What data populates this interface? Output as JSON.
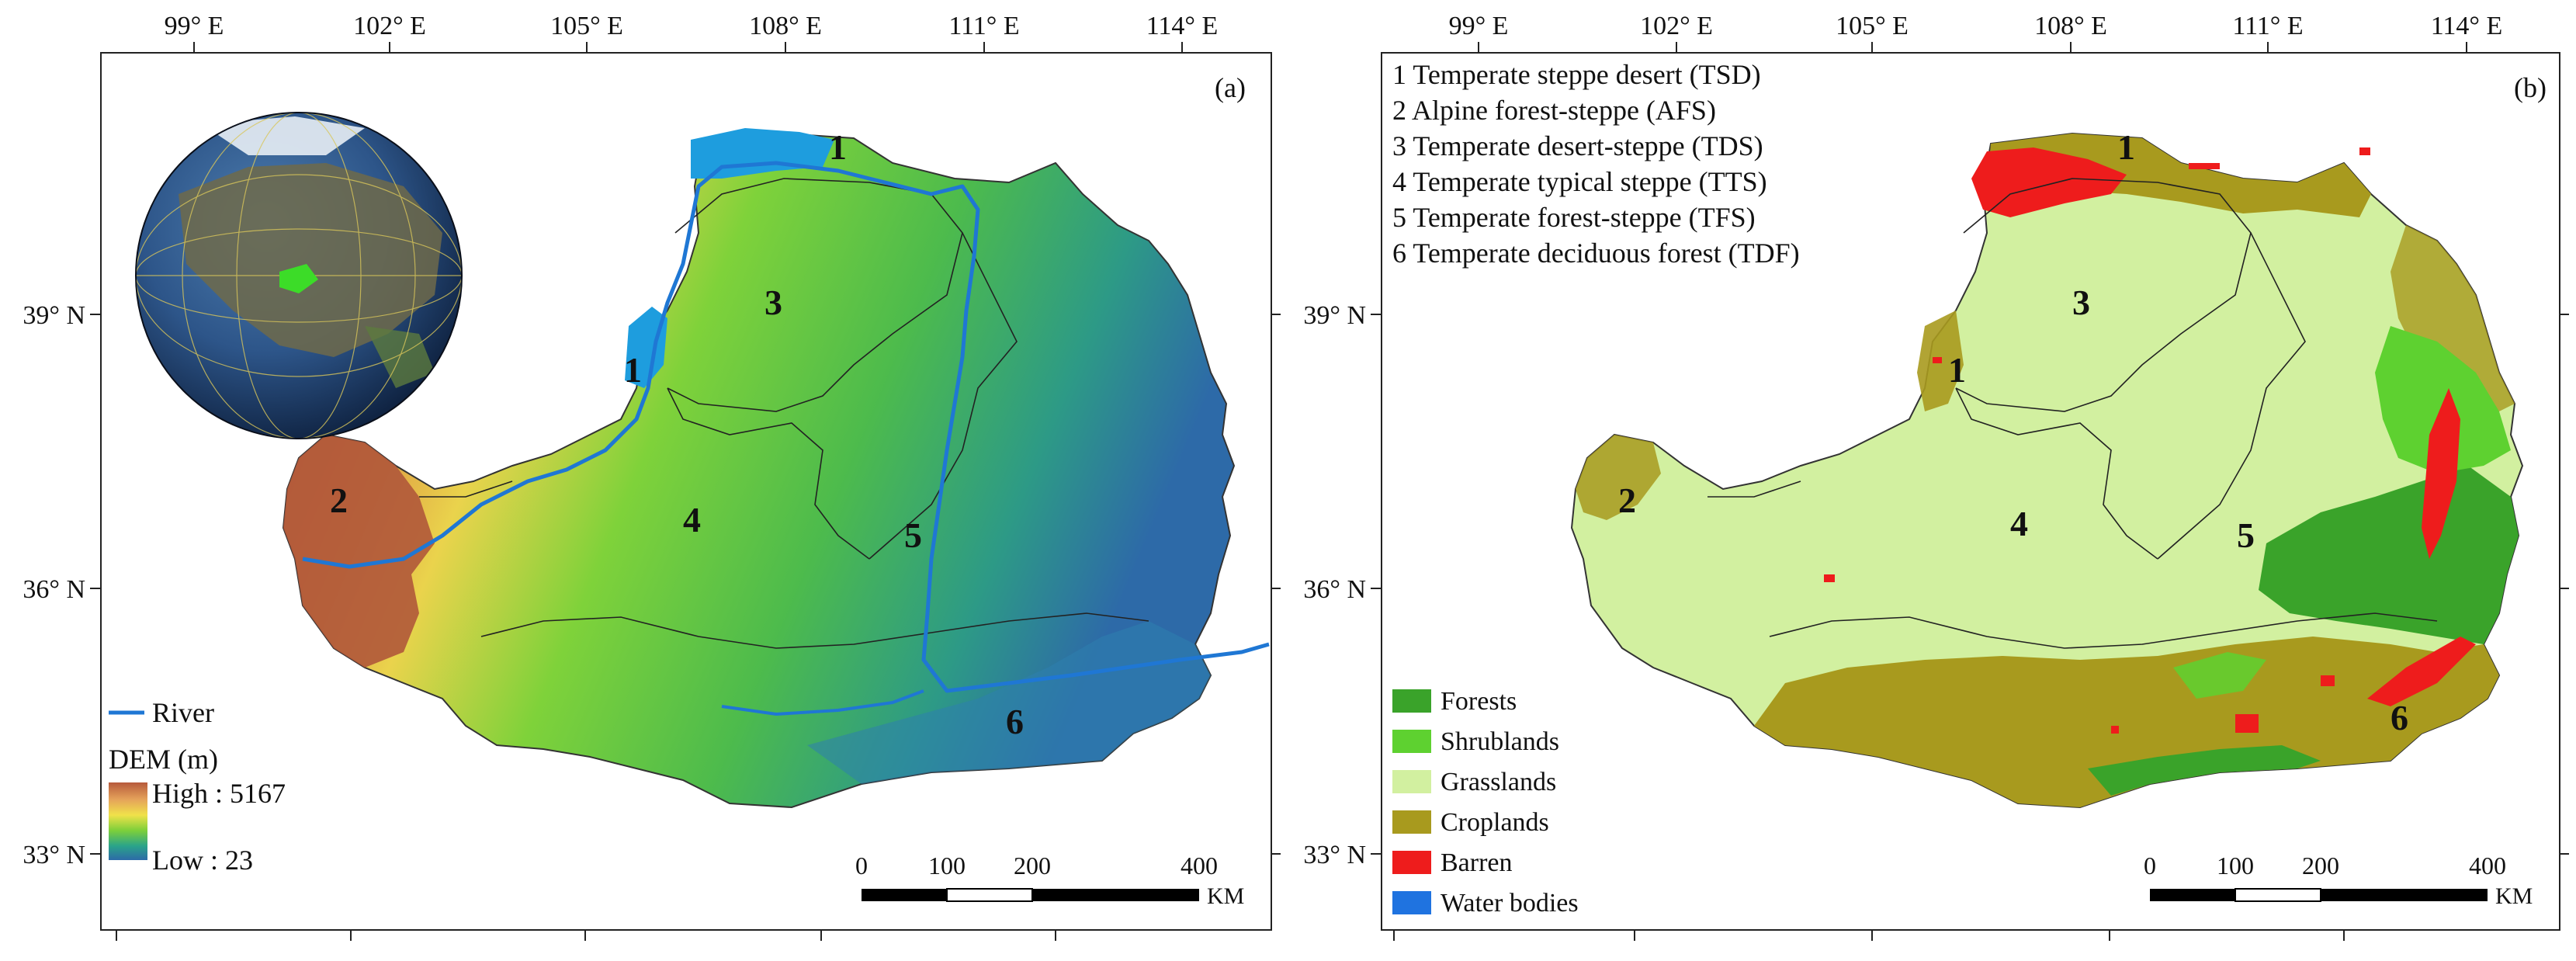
{
  "panel_a": {
    "label": "(a)",
    "top_ticks": [
      "99° E",
      "102° E",
      "105° E",
      "108° E",
      "111° E",
      "114° E"
    ],
    "left_ticks": [
      "39° N",
      "36° N",
      "33° N"
    ],
    "region_numbers": [
      "1",
      "1",
      "2",
      "3",
      "4",
      "5",
      "6"
    ],
    "legend": {
      "river_label": "River",
      "dem_title": "DEM (m)",
      "dem_high": "High : 5167",
      "dem_low": "Low : 23",
      "ramp_colors": [
        "#b75a3c",
        "#e5a35a",
        "#f0e24a",
        "#7ccf3a",
        "#2aa38a",
        "#2d6aa8"
      ]
    },
    "scale": {
      "labels": [
        "0",
        "100",
        "200",
        "400"
      ],
      "unit": "KM"
    },
    "colors": {
      "river": "#1f77d4",
      "basin": "#1e9dde",
      "lowland": "#2e7fae",
      "highland": "#b0583a"
    }
  },
  "panel_b": {
    "label": "(b)",
    "top_ticks": [
      "99° E",
      "102° E",
      "105° E",
      "108° E",
      "111° E",
      "114° E"
    ],
    "left_ticks": [
      "39° N",
      "36° N",
      "33° N"
    ],
    "zone_list": [
      "1 Temperate steppe desert (TSD)",
      "2 Alpine forest-steppe (AFS)",
      "3 Temperate desert-steppe (TDS)",
      "4 Temperate typical steppe (TTS)",
      "5 Temperate forest-steppe (TFS)",
      "6 Temperate deciduous forest (TDF)"
    ],
    "region_numbers": [
      "1",
      "1",
      "2",
      "3",
      "4",
      "5",
      "6"
    ],
    "landcover_legend": [
      {
        "label": "Forests",
        "color": "#3aa32a"
      },
      {
        "label": "Shrublands",
        "color": "#5ed130"
      },
      {
        "label": "Grasslands",
        "color": "#d2f0a0"
      },
      {
        "label": "Croplands",
        "color": "#a89a1e"
      },
      {
        "label": "Barren",
        "color": "#ee1c1c"
      },
      {
        "label": "Water bodies",
        "color": "#1f73e0"
      }
    ],
    "scale": {
      "labels": [
        "0",
        "100",
        "200",
        "400"
      ],
      "unit": "KM"
    }
  }
}
